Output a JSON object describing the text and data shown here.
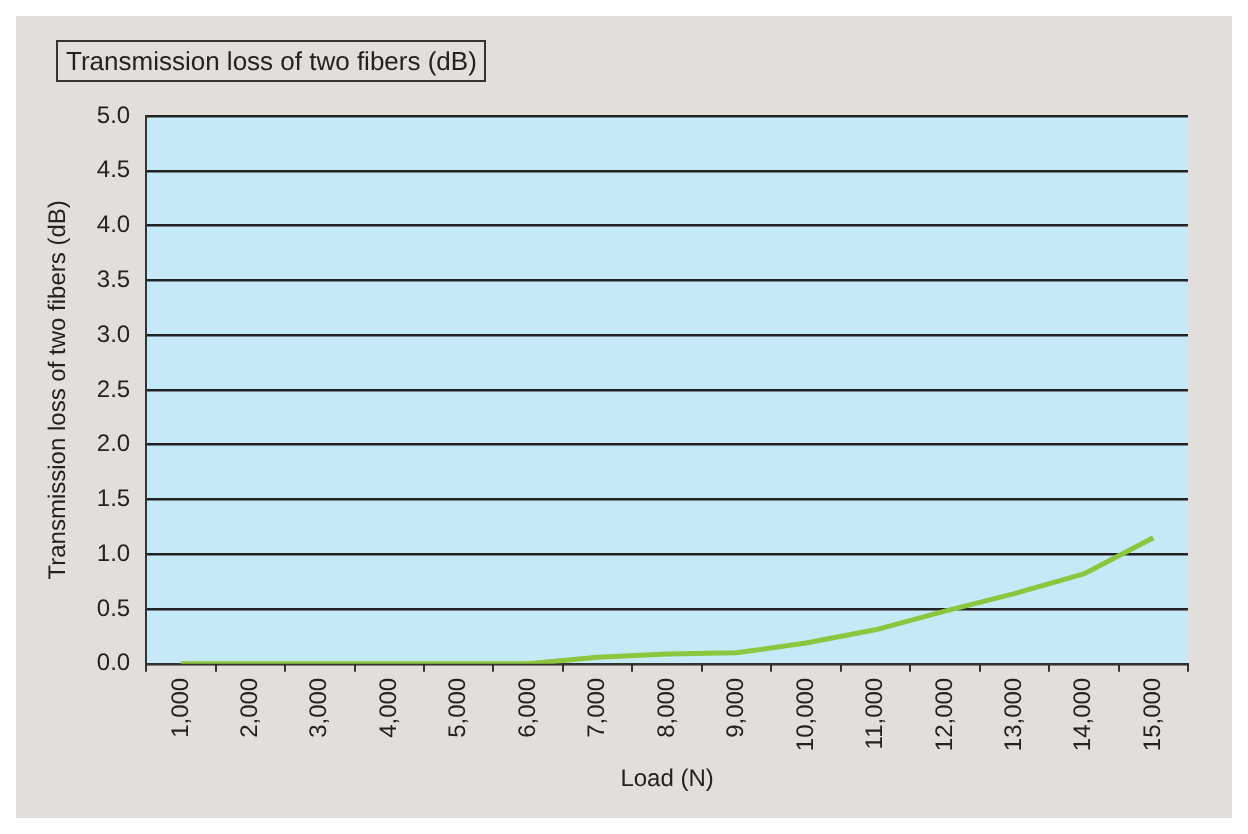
{
  "chart_data": {
    "type": "line",
    "title": "Transmission loss of two fibers (dB)",
    "xlabel": "Load (N)",
    "ylabel": "Transmission loss of two fibers (dB)",
    "categories": [
      "1,000",
      "2,000",
      "3,000",
      "4,000",
      "5,000",
      "6,000",
      "7,000",
      "8,000",
      "9,000",
      "10,000",
      "11,000",
      "12,000",
      "13,000",
      "14,000",
      "15,000"
    ],
    "series": [
      {
        "color": "#8cc63f",
        "values": [
          0,
          0,
          0,
          0,
          0,
          0,
          0.06,
          0.09,
          0.1,
          0.19,
          0.31,
          0.48,
          0.64,
          0.82,
          1.15
        ]
      }
    ],
    "ylim": [
      0,
      5
    ],
    "yticks": [
      {
        "value": 0,
        "label": "0.0"
      },
      {
        "value": 0.5,
        "label": "0.5"
      },
      {
        "value": 1,
        "label": "1.0"
      },
      {
        "value": 1.5,
        "label": "1.5"
      },
      {
        "value": 2,
        "label": "2.0"
      },
      {
        "value": 2.5,
        "label": "2.5"
      },
      {
        "value": 3,
        "label": "3.0"
      },
      {
        "value": 3.5,
        "label": "3.5"
      },
      {
        "value": 4,
        "label": "4.0"
      },
      {
        "value": 4.5,
        "label": "4.5"
      },
      {
        "value": 5,
        "label": "5.0"
      }
    ],
    "grid": "y",
    "legend": false,
    "marker": "none",
    "line_style": "solid"
  }
}
